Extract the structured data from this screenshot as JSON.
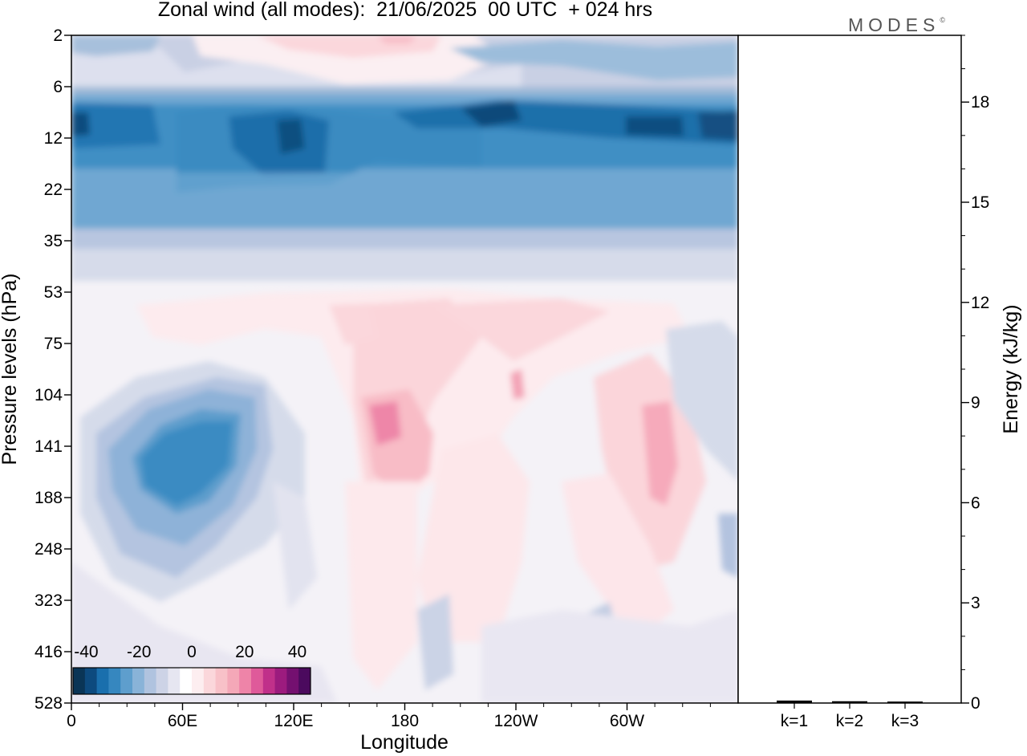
{
  "header": {
    "title": "Zonal wind (all modes):  21/06/2025  00 UTC  + 024 hrs",
    "logo": "MODES",
    "logo_mark": "©"
  },
  "chart_data": [
    {
      "type": "heatmap",
      "title": "Zonal wind (all modes):  21/06/2025  00 UTC  + 024 hrs",
      "xlabel": "Longitude",
      "ylabel": "Pressure levels (hPa)",
      "x_ticks": [
        "0",
        "60E",
        "120E",
        "180",
        "120W",
        "60W"
      ],
      "x_tick_degrees": [
        0,
        60,
        120,
        180,
        240,
        300
      ],
      "xlim": [
        0,
        360
      ],
      "y_ticks": [
        "2",
        "6",
        "12",
        "22",
        "35",
        "53",
        "75",
        "104",
        "141",
        "188",
        "248",
        "323",
        "416",
        "528"
      ],
      "y_scale": "pressure levels, top to bottom",
      "colorbar": {
        "labels": [
          "-40",
          "-20",
          "0",
          "20",
          "40"
        ],
        "range": [
          -45,
          45
        ],
        "step": 5,
        "colors": [
          "#0a3556",
          "#0d4a7e",
          "#1a6fad",
          "#3687bf",
          "#5e9ecd",
          "#89b3d8",
          "#b0c3df",
          "#cdd3e6",
          "#e6e6f1",
          "#ffffff",
          "#fdeef0",
          "#fbd7db",
          "#f8c1c8",
          "#f4a8b8",
          "#ee84a8",
          "#df5a9a",
          "#c0308a",
          "#9c1b7e",
          "#741070",
          "#4b0a5e"
        ],
        "placement": "bottom-left inside plot"
      },
      "regions": [
        {
          "feature": "stratospheric easterly band",
          "lon": [
            0,
            360
          ],
          "level": [
            "6",
            "22"
          ],
          "value": -30
        },
        {
          "feature": "easterly maxima",
          "lon": [
            95,
            115
          ],
          "level": [
            "12",
            "14"
          ],
          "value": -38
        },
        {
          "feature": "easterly maxima",
          "lon": [
            220,
            240
          ],
          "level": [
            "9",
            "10"
          ],
          "value": -38
        },
        {
          "feature": "upper westerly",
          "lon": [
            150,
            190
          ],
          "level": [
            "2",
            "3"
          ],
          "value": 12
        },
        {
          "feature": "tropospheric easterly jet",
          "lon": [
            30,
            90
          ],
          "level": [
            "104",
            "188"
          ],
          "value": -27
        },
        {
          "feature": "westerly maximum",
          "lon": [
            155,
            185
          ],
          "level": [
            "104",
            "188"
          ],
          "value": 17
        },
        {
          "feature": "westerly maximum",
          "lon": [
            310,
            330
          ],
          "level": [
            "104",
            "188"
          ],
          "value": 12
        },
        {
          "feature": "westerly maximum",
          "lon": [
            240,
            245
          ],
          "level": [
            "104",
            "141"
          ],
          "value": 10
        }
      ]
    },
    {
      "type": "bar",
      "ylabel": "Energy (kJ/kg)",
      "categories": [
        "k=1",
        "k=2",
        "k=3"
      ],
      "values": [
        0.05,
        0.03,
        0.02
      ],
      "ylim": [
        0,
        20
      ],
      "y_ticks": [
        "0",
        "3",
        "6",
        "9",
        "12",
        "15",
        "18"
      ],
      "y_axis": "right"
    }
  ]
}
